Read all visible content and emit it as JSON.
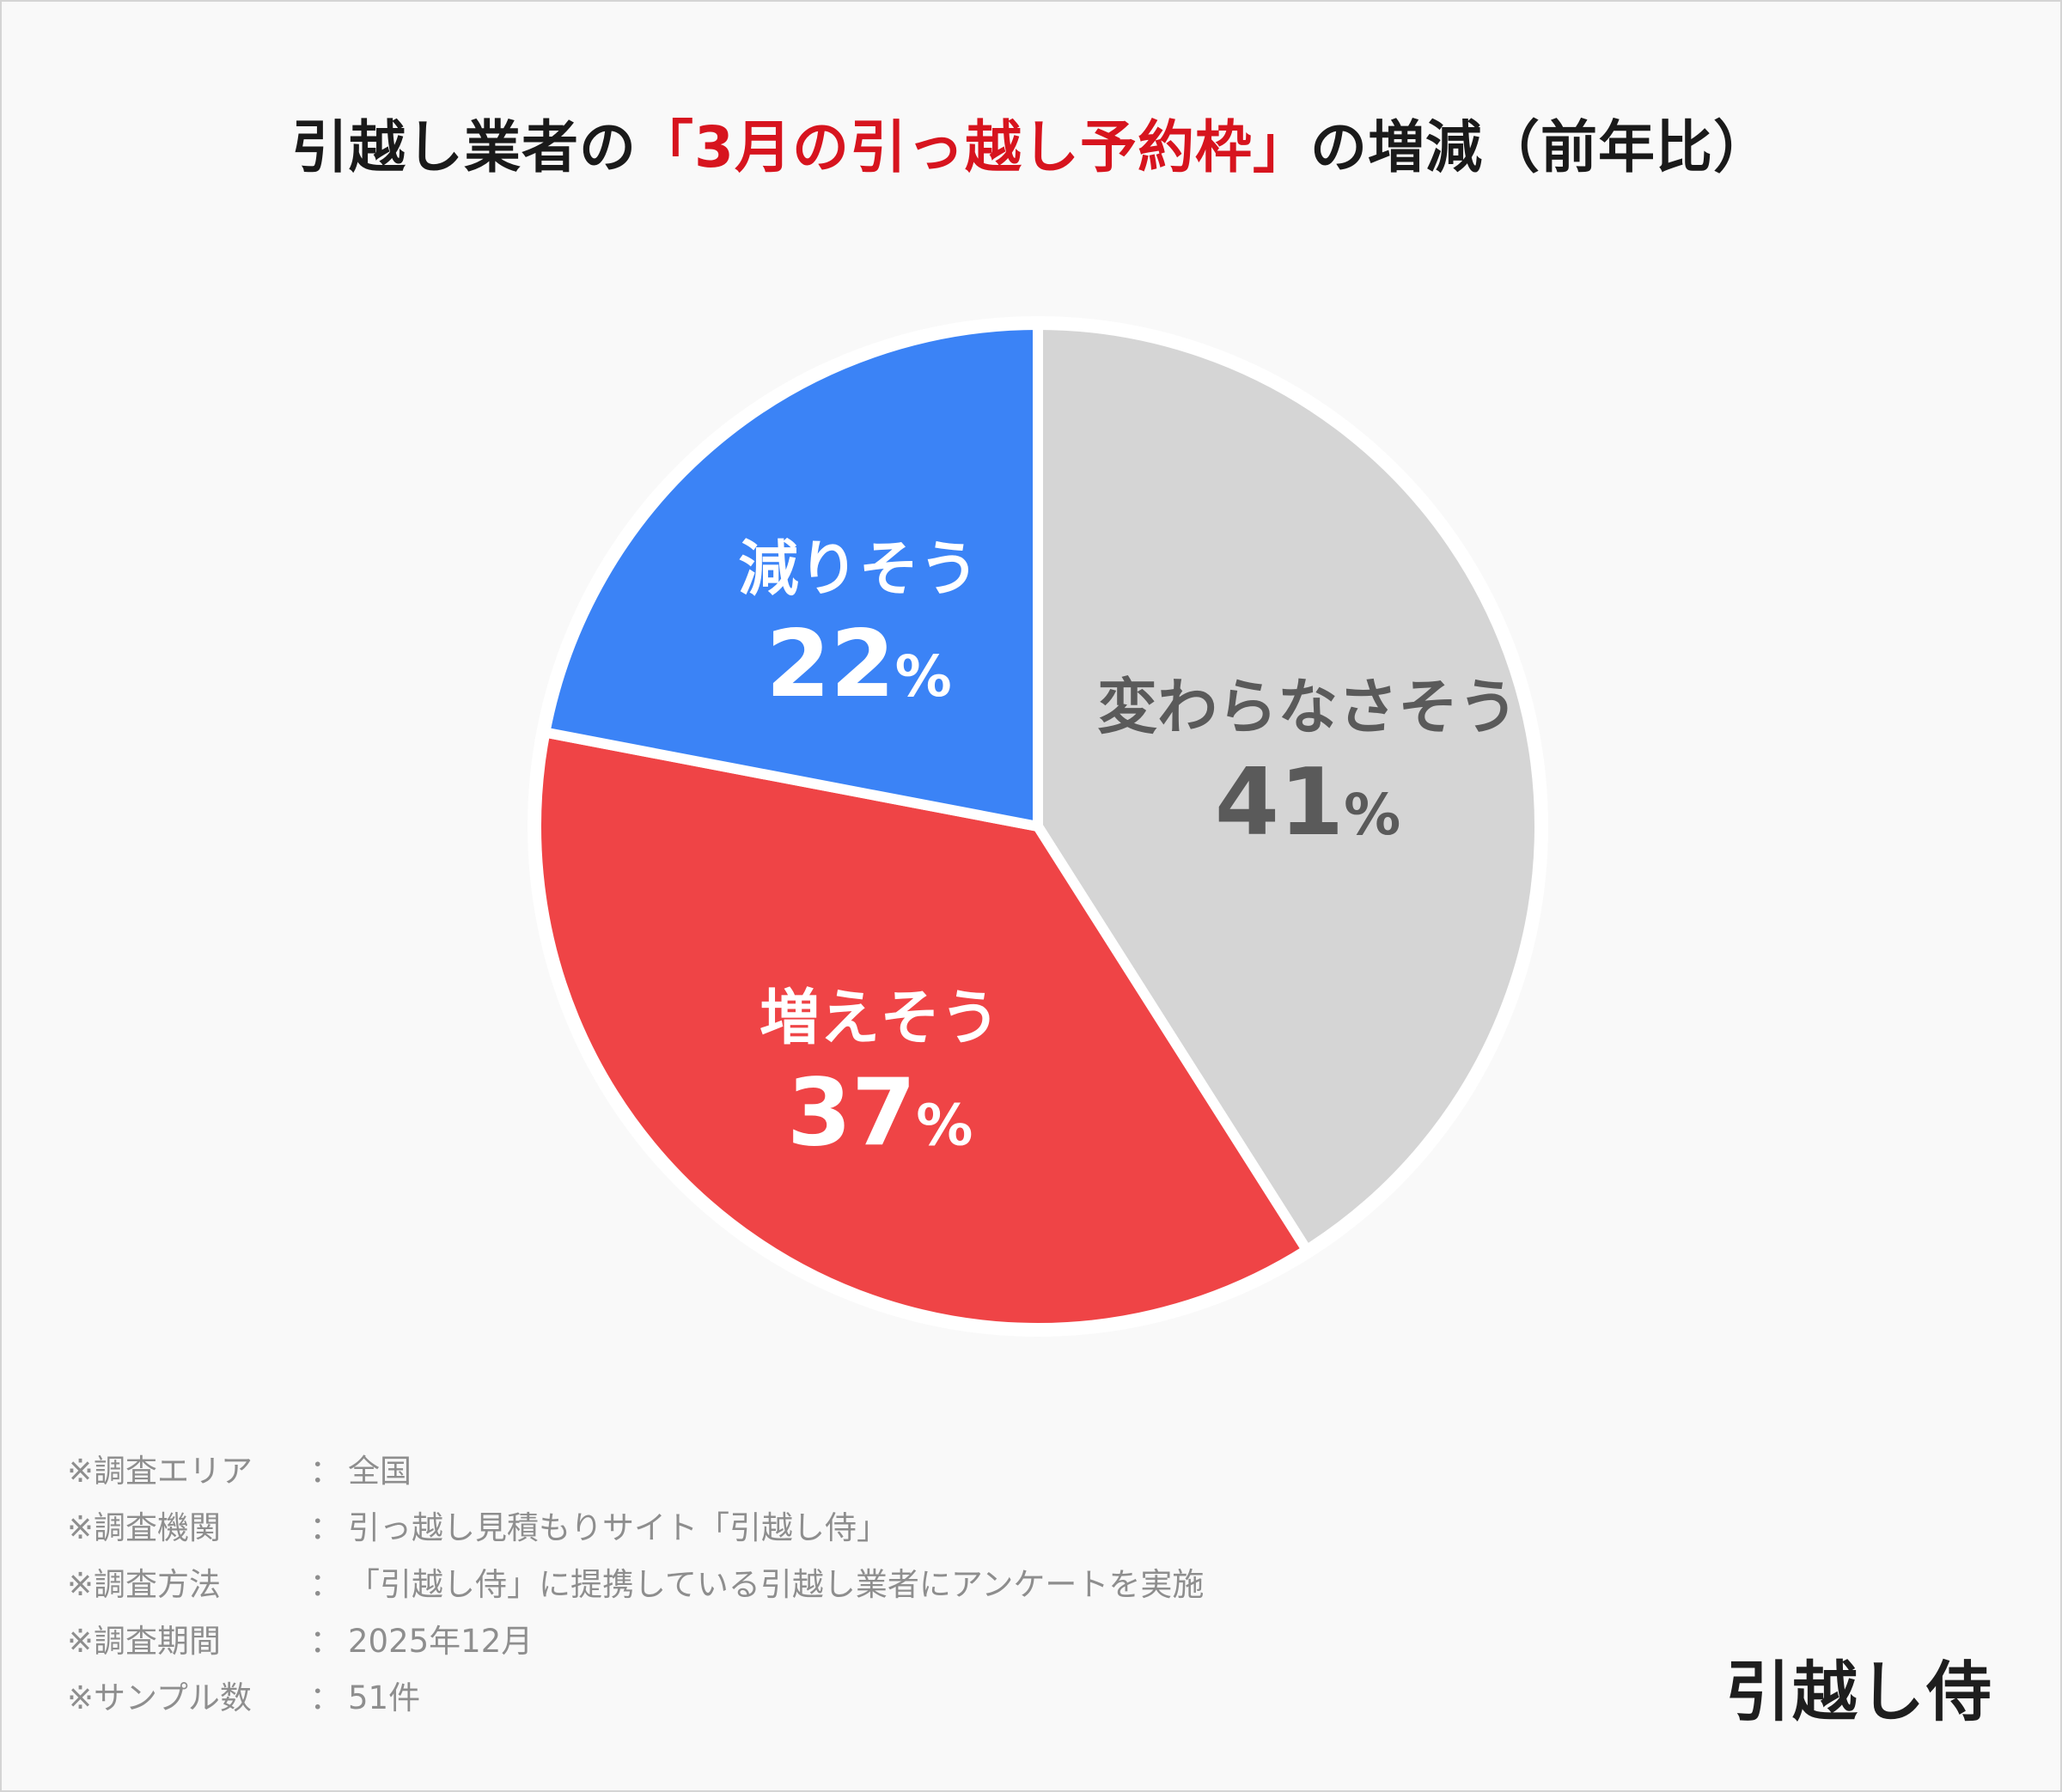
{
  "title": {
    "prefix": "引越し業者の",
    "highlight": "「3月の引っ越し予約枠」",
    "suffix": "の増減（前年比）"
  },
  "chart_data": {
    "type": "pie",
    "title": "引越し業者の「3月の引っ越し予約枠」の増減（前年比）",
    "percent_suffix": "%",
    "slices": [
      {
        "label": "変わらなさそう",
        "value": 41,
        "color": "#d5d5d5",
        "text_color": "#5a5a5a"
      },
      {
        "label": "増えそう",
        "value": 37,
        "color": "#ef4446",
        "text_color": "#ffffff"
      },
      {
        "label": "減りそう",
        "value": 22,
        "color": "#3b83f6",
        "text_color": "#ffffff"
      }
    ]
  },
  "notes": [
    {
      "key": "※調査エリア",
      "sep": "：",
      "value": "全国"
    },
    {
      "key": "※調査機関",
      "sep": "：",
      "value": "引っ越し見積もりサイト「引越し侍」"
    },
    {
      "key": "※調査方法",
      "sep": "：",
      "value": "「引越し侍」に提携している引越し業者にアンケートを実施"
    },
    {
      "key": "※調査期間",
      "sep": "：",
      "value": "2025年12月"
    },
    {
      "key": "※サンプル数",
      "sep": "：",
      "value": "51件"
    }
  ],
  "logo": "引越し侍"
}
